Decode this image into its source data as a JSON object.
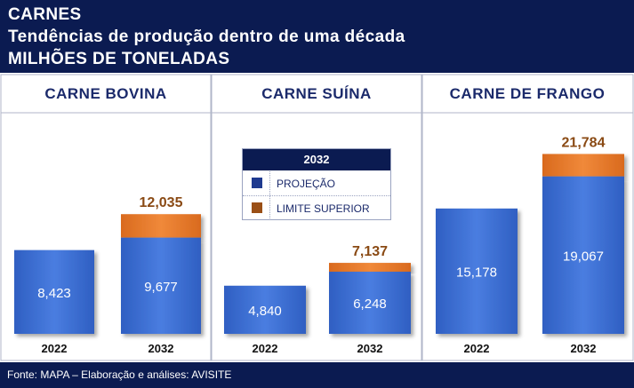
{
  "header": {
    "line1": "CARNES",
    "line2": "Tendências de produção dentro de uma década",
    "line3": "MILHÕES DE TONELADAS"
  },
  "legend": {
    "title": "2032",
    "items": [
      {
        "label": "PROJEÇÃO",
        "color": "#3f6fd1"
      },
      {
        "label": "LIMITE SUPERIOR",
        "color": "#e07a2c"
      }
    ]
  },
  "footer": {
    "text": "Fonte: MAPA – Elaboração e análises: AVISITE"
  },
  "colors": {
    "navy": "#0b1b51",
    "projection": "#3f6fd1",
    "upper_limit": "#e07a2c",
    "upper_label": "#8a4a14",
    "panel_title": "#1b2a6b"
  },
  "chart_data": [
    {
      "type": "bar",
      "title": "CARNE BOVINA",
      "categories": [
        "2022",
        "2032"
      ],
      "series": [
        {
          "name": "PROJEÇÃO",
          "values": [
            8.423,
            9.677
          ],
          "labels": [
            "8,423",
            "9,677"
          ]
        },
        {
          "name": "LIMITE SUPERIOR",
          "values": [
            null,
            12.035
          ],
          "labels": [
            "",
            "12,035"
          ]
        }
      ]
    },
    {
      "type": "bar",
      "title": "CARNE SUÍNA",
      "categories": [
        "2022",
        "2032"
      ],
      "series": [
        {
          "name": "PROJEÇÃO",
          "values": [
            4.84,
            6.248
          ],
          "labels": [
            "4,840",
            "6,248"
          ]
        },
        {
          "name": "LIMITE SUPERIOR",
          "values": [
            null,
            7.137
          ],
          "labels": [
            "",
            "7,137"
          ]
        }
      ]
    },
    {
      "type": "bar",
      "title": "CARNE DE FRANGO",
      "categories": [
        "2022",
        "2032"
      ],
      "series": [
        {
          "name": "PROJEÇÃO",
          "values": [
            15.178,
            19.067
          ],
          "labels": [
            "15,178",
            "19,067"
          ]
        },
        {
          "name": "LIMITE SUPERIOR",
          "values": [
            null,
            21.784
          ],
          "labels": [
            "",
            "21,784"
          ]
        }
      ]
    }
  ]
}
